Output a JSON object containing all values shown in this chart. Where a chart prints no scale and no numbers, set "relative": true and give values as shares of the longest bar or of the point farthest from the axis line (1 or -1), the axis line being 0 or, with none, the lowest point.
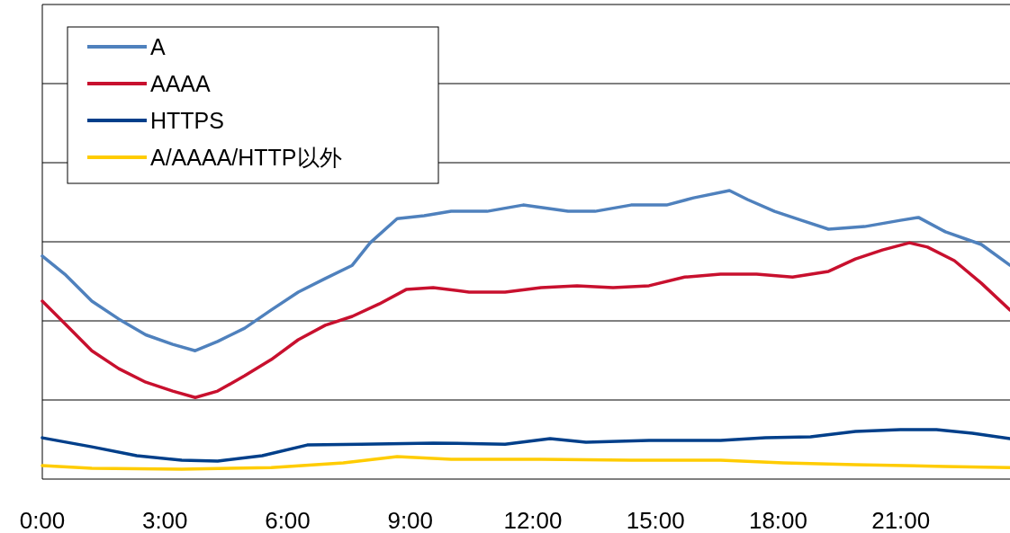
{
  "chart_data": {
    "type": "line",
    "relative": true,
    "grid": "y",
    "legend": "top left",
    "xlim": [
      0,
      23.67
    ],
    "xticks": [
      {
        "value": 0,
        "label": "0:00"
      },
      {
        "value": 3,
        "label": "3:00"
      },
      {
        "value": 6,
        "label": "6:00"
      },
      {
        "value": 9,
        "label": "9:00"
      },
      {
        "value": 12,
        "label": "12:00"
      },
      {
        "value": 15,
        "label": "15:00"
      },
      {
        "value": 18,
        "label": "18:00"
      },
      {
        "value": 21,
        "label": "21:00"
      }
    ],
    "series": [
      {
        "name": "A",
        "color": "#4f81bd",
        "x": [
          0,
          0.55,
          1.21,
          1.87,
          2.53,
          3.19,
          3.74,
          4.29,
          4.95,
          5.6,
          6.26,
          6.92,
          7.58,
          8.02,
          8.68,
          9.34,
          10,
          10.88,
          11.76,
          12.86,
          13.52,
          14.4,
          15.27,
          15.93,
          16.81,
          17.25,
          17.91,
          18.57,
          19.23,
          20.11,
          20.99,
          21.43,
          22.09,
          22.97,
          23.67
        ],
        "values": [
          0.773,
          0.71,
          0.617,
          0.555,
          0.5,
          0.467,
          0.445,
          0.477,
          0.523,
          0.586,
          0.648,
          0.695,
          0.741,
          0.819,
          0.903,
          0.913,
          0.928,
          0.928,
          0.95,
          0.928,
          0.928,
          0.95,
          0.95,
          0.975,
          1.0,
          0.969,
          0.928,
          0.897,
          0.866,
          0.875,
          0.897,
          0.907,
          0.857,
          0.813,
          0.741
        ]
      },
      {
        "name": "AAAA",
        "color": "#c8102e",
        "x": [
          0,
          0.55,
          1.21,
          1.87,
          2.53,
          3.19,
          3.74,
          4.29,
          4.95,
          5.6,
          6.26,
          6.92,
          7.58,
          8.24,
          8.9,
          9.56,
          10.44,
          11.32,
          12.2,
          13.08,
          13.96,
          14.84,
          15.71,
          16.59,
          17.47,
          18.35,
          19.23,
          19.89,
          20.55,
          21.21,
          21.65,
          22.31,
          22.97,
          23.67
        ],
        "values": [
          0.617,
          0.539,
          0.445,
          0.383,
          0.336,
          0.305,
          0.283,
          0.305,
          0.358,
          0.414,
          0.483,
          0.533,
          0.564,
          0.607,
          0.657,
          0.664,
          0.648,
          0.648,
          0.664,
          0.67,
          0.664,
          0.67,
          0.7,
          0.71,
          0.71,
          0.7,
          0.72,
          0.763,
          0.794,
          0.819,
          0.804,
          0.757,
          0.679,
          0.586
        ]
      },
      {
        "name": "HTTPS",
        "color": "#003f8a",
        "x": [
          0,
          1.21,
          2.31,
          3.41,
          4.29,
          5.38,
          6.48,
          7.8,
          9.56,
          11.32,
          12.42,
          13.3,
          14.84,
          16.59,
          17.69,
          18.79,
          19.89,
          20.99,
          21.87,
          22.75,
          23.67
        ],
        "values": [
          0.143,
          0.112,
          0.081,
          0.065,
          0.062,
          0.081,
          0.118,
          0.121,
          0.125,
          0.121,
          0.14,
          0.128,
          0.134,
          0.134,
          0.143,
          0.146,
          0.165,
          0.171,
          0.171,
          0.159,
          0.14
        ]
      },
      {
        "name": "A/AAAA/HTTP以外",
        "color": "#ffcc00",
        "x": [
          0,
          1.21,
          3.41,
          5.6,
          7.36,
          8.68,
          10,
          12.2,
          14.4,
          16.59,
          18.13,
          19.89,
          22.09,
          23.67
        ],
        "values": [
          0.047,
          0.037,
          0.034,
          0.04,
          0.056,
          0.078,
          0.069,
          0.069,
          0.065,
          0.065,
          0.056,
          0.05,
          0.044,
          0.04
        ]
      }
    ]
  }
}
